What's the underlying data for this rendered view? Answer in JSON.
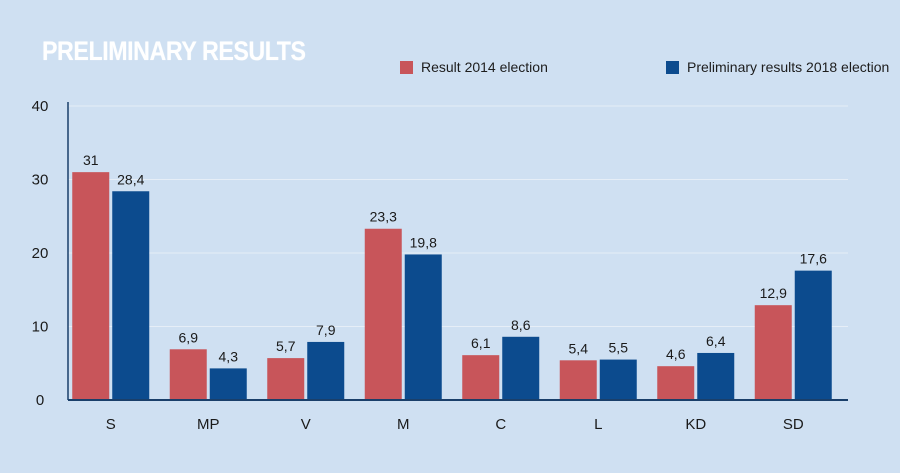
{
  "chart_data": {
    "type": "bar",
    "title": "PRELIMINARY RESULTS",
    "categories": [
      "S",
      "MP",
      "V",
      "M",
      "C",
      "L",
      "KD",
      "SD"
    ],
    "series": [
      {
        "name": "Result 2014 election",
        "values": [
          31,
          6.9,
          5.7,
          23.3,
          6.1,
          5.4,
          4.6,
          12.9
        ],
        "labels": [
          "31",
          "6,9",
          "5,7",
          "23,3",
          "6,1",
          "5,4",
          "4,6",
          "12,9"
        ]
      },
      {
        "name": "Preliminary results 2018 election",
        "values": [
          28.4,
          4.3,
          7.9,
          19.8,
          8.6,
          5.5,
          6.4,
          17.6
        ],
        "labels": [
          "28,4",
          "4,3",
          "7,9",
          "19,8",
          "8,6",
          "5,5",
          "6,4",
          "17,6"
        ]
      }
    ],
    "yticks": [
      "0",
      "10",
      "20",
      "30",
      "40"
    ],
    "ylim": [
      0,
      40
    ],
    "xlabel": "",
    "ylabel": "",
    "grid": true,
    "legend_position": "top-right"
  },
  "colors": {
    "series_2014": "#c8555a",
    "series_2018": "#0c4b8e",
    "background": "#cfe0f2",
    "gridline": "#e6eef7",
    "axis": "#1a3f6a"
  }
}
